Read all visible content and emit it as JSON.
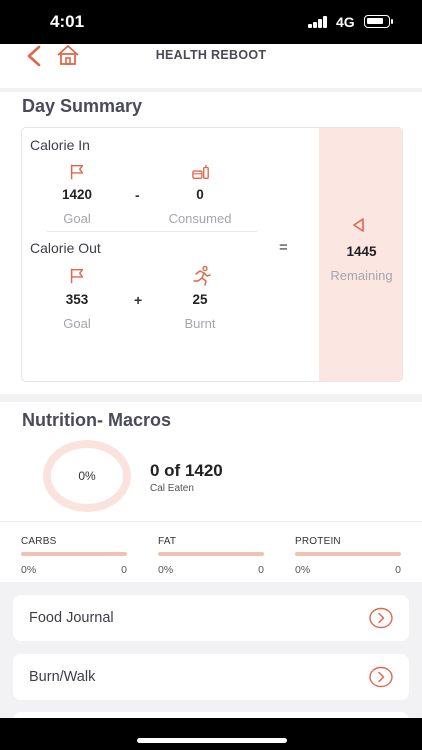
{
  "status_bar": {
    "time": "4:01",
    "network": "4G"
  },
  "navbar": {
    "title": "HEALTH REBOOT",
    "back_icon": "chevron-left-icon",
    "home_icon": "home-icon"
  },
  "day_summary": {
    "title": "Day Summary",
    "calorie_in": {
      "label": "Calorie In",
      "goal_value": "1420",
      "goal_label": "Goal",
      "operator": "-",
      "consumed_value": "0",
      "consumed_label": "Consumed"
    },
    "calorie_out": {
      "label": "Calorie Out",
      "goal_value": "353",
      "goal_label": "Goal",
      "operator": "+",
      "burnt_value": "25",
      "burnt_label": "Burnt"
    },
    "equals": "=",
    "remaining_value": "1445",
    "remaining_label": "Remaining"
  },
  "nutrition": {
    "title": "Nutrition- Macros",
    "ring_percent": "0%",
    "eaten_text": "0 of 1420",
    "eaten_sub": "Cal Eaten",
    "macros": [
      {
        "name": "CARBS",
        "percent": "0%",
        "amount": "0"
      },
      {
        "name": "FAT",
        "percent": "0%",
        "amount": "0"
      },
      {
        "name": "PROTEIN",
        "percent": "0%",
        "amount": "0"
      }
    ]
  },
  "list": [
    {
      "label": "Food Journal"
    },
    {
      "label": "Burn/Walk"
    }
  ],
  "colors": {
    "accent": "#e0674e",
    "remaining_bg": "#fbe6e1",
    "bar": "#f1c2b4"
  }
}
